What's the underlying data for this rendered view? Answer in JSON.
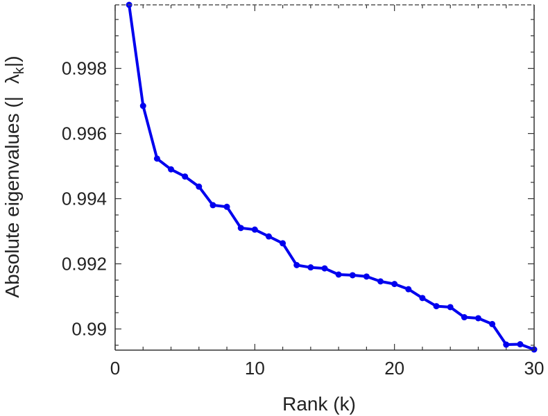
{
  "chart_data": {
    "type": "line",
    "xlabel": "Rank (k)",
    "ylabel_parts": {
      "main": "Absolute eigenvalues (|",
      "symbol": "λ",
      "subscript": "k",
      "close": "|)"
    },
    "xlim": [
      0,
      30
    ],
    "ylim": [
      0.98935,
      0.99995
    ],
    "x_ticks": [
      0,
      10,
      20,
      30
    ],
    "y_ticks": [
      0.99,
      0.992,
      0.994,
      0.996,
      0.998
    ],
    "x_tick_labels": [
      "0",
      "10",
      "20",
      "30"
    ],
    "y_tick_labels": [
      "0.99",
      "0.992",
      "0.994",
      "0.996",
      "0.998"
    ],
    "grid": false,
    "series": [
      {
        "color": "#0000ee",
        "x": [
          1,
          2,
          3,
          4,
          5,
          6,
          7,
          8,
          9,
          10,
          11,
          12,
          13,
          14,
          15,
          16,
          17,
          18,
          19,
          20,
          21,
          22,
          23,
          24,
          25,
          26,
          27,
          28,
          29,
          30
        ],
        "y": [
          0.99995,
          0.99685,
          0.99523,
          0.9949,
          0.99468,
          0.99437,
          0.9938,
          0.99375,
          0.9931,
          0.99305,
          0.99284,
          0.99263,
          0.99196,
          0.99189,
          0.99186,
          0.99167,
          0.99165,
          0.99161,
          0.99146,
          0.99138,
          0.99122,
          0.99095,
          0.9907,
          0.99067,
          0.99036,
          0.99033,
          0.99015,
          0.98952,
          0.98953,
          0.98937
        ]
      }
    ]
  }
}
